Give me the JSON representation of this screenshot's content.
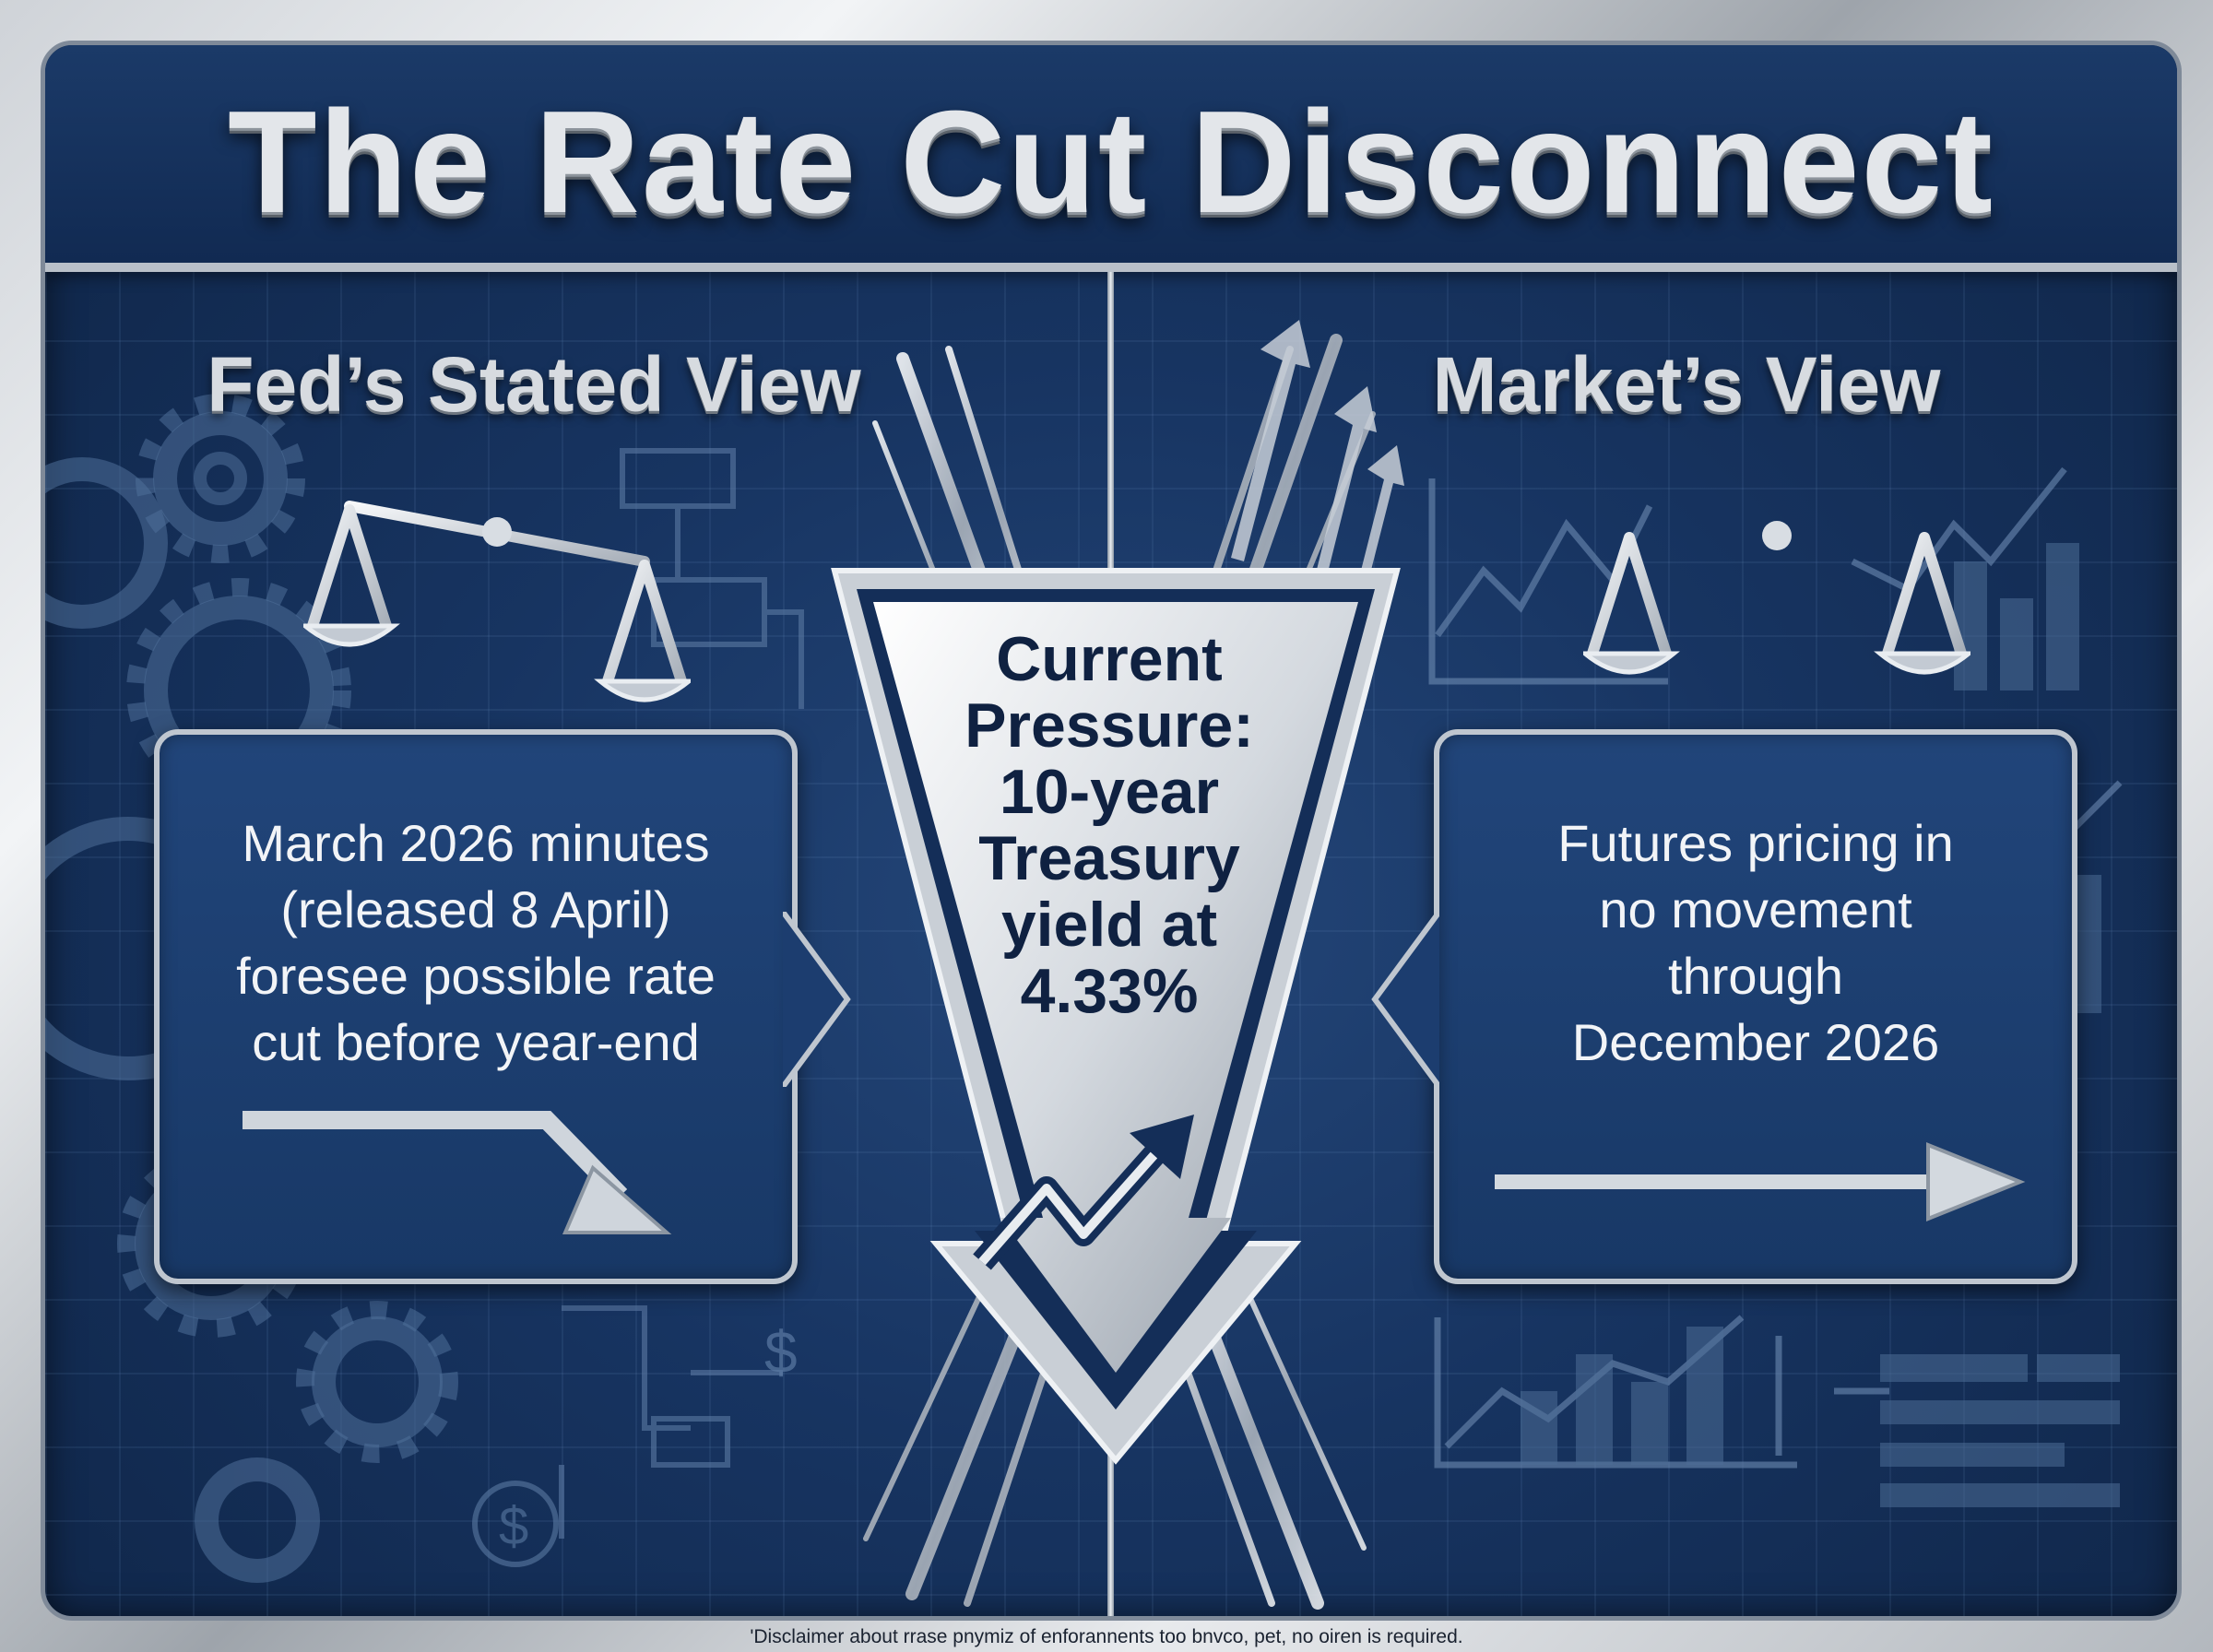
{
  "title": "The Rate Cut Disconnect",
  "left": {
    "heading": "Fed’s Stated View",
    "lines": [
      "March 2026 minutes",
      "(released 8 April)",
      "foresee possible rate",
      "cut before year-end"
    ]
  },
  "right": {
    "heading": "Market’s View",
    "lines": [
      "Futures pricing in",
      "no movement",
      "through",
      "December 2026"
    ]
  },
  "center": {
    "lines": [
      "Current",
      "Pressure:",
      "10-year",
      "Treasury",
      "yield at",
      "4.33%"
    ]
  },
  "disclaimer": "'Disclaimer about rrase pnymiz of enforannents too bnvco, pet, no oiren is required.",
  "decor_icons": {
    "left_scale": "balance-scale-tilted-icon",
    "right_scale": "balance-scale-level-icon",
    "left_trend": "arrow-down-right-icon",
    "right_trend": "arrow-right-icon",
    "center_trend": "zigzag-up-arrow-icon",
    "dollar": "dollar-icon",
    "gears": "gear-icon"
  },
  "colors": {
    "navy": "#173461",
    "silver": "#c9ced5",
    "text_dark": "#0f2141"
  }
}
